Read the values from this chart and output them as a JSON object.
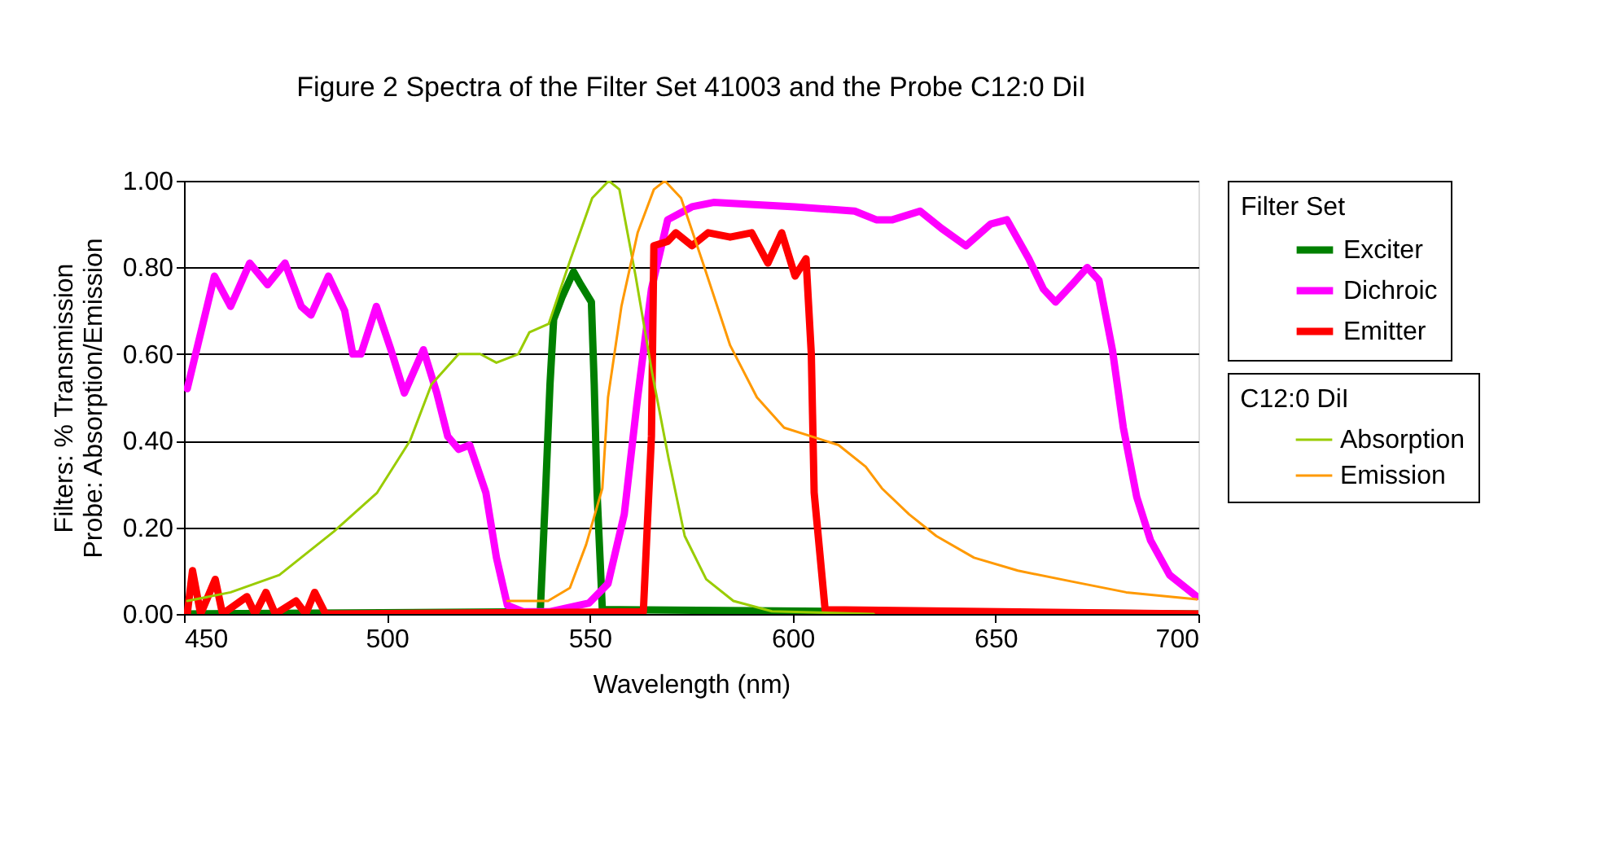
{
  "chart_data": {
    "type": "line",
    "title": "Figure 2  Spectra of the Filter Set 41003 and the Probe C12:0 DiI",
    "xlabel": "Wavelength (nm)",
    "ylabel": "Filters: % Transmission\nProbe: Absorption/Emission",
    "legend_title": [
      "Filter Set",
      "C12:0 DiI"
    ],
    "xlim": [
      450,
      700
    ],
    "xticks": [
      450,
      500,
      550,
      600,
      650,
      700
    ],
    "ylim": [
      0,
      1
    ],
    "yticks": [
      {
        "value": 0,
        "label": "0.00"
      },
      {
        "value": 0.2,
        "label": "0.20"
      },
      {
        "value": 0.4,
        "label": "0.40"
      },
      {
        "value": 0.6,
        "label": "0.60"
      },
      {
        "value": 0.8,
        "label": "0.80"
      },
      {
        "value": 1,
        "label": "1.00"
      }
    ],
    "grid": "y",
    "legend": "right",
    "marker": "none",
    "line_style": "solid",
    "series": [
      {
        "name": "Exciter",
        "color": "#008000",
        "x": [
          450,
          537.8,
          539.1,
          540.2,
          541.1,
          543.1,
          546,
          547.8,
          550.4,
          551.1,
          551.8,
          553.1,
          700
        ],
        "values": [
          0,
          0.005,
          0.28,
          0.53,
          0.68,
          0.73,
          0.79,
          0.76,
          0.72,
          0.53,
          0.28,
          0.01,
          0
        ]
      },
      {
        "name": "Dichroic",
        "color": "#ff00ff",
        "x": [
          450.8,
          457.5,
          461.5,
          466.2,
          470.6,
          474.9,
          478.9,
          481.3,
          485.6,
          489.6,
          491.6,
          493.6,
          497.4,
          501,
          504.3,
          509,
          512.3,
          515,
          517.7,
          520.4,
          524.4,
          527,
          529.7,
          533.7,
          540,
          549.8,
          554.5,
          558.5,
          561.8,
          565.2,
          569.2,
          575.2,
          580.5,
          600.6,
          615.3,
          620.6,
          624.6,
          631.4,
          636.7,
          642.7,
          648.8,
          652.8,
          658.2,
          661.8,
          664.8,
          668.8,
          672.6,
          675.5,
          678.8,
          681.5,
          684.8,
          688.2,
          692.9,
          699.6
        ],
        "values": [
          0.52,
          0.78,
          0.71,
          0.81,
          0.76,
          0.81,
          0.71,
          0.69,
          0.78,
          0.7,
          0.6,
          0.6,
          0.71,
          0.61,
          0.51,
          0.61,
          0.51,
          0.41,
          0.38,
          0.39,
          0.28,
          0.13,
          0.02,
          0.005,
          0.005,
          0.025,
          0.07,
          0.23,
          0.5,
          0.75,
          0.91,
          0.94,
          0.95,
          0.94,
          0.93,
          0.91,
          0.91,
          0.93,
          0.89,
          0.85,
          0.9,
          0.91,
          0.82,
          0.75,
          0.72,
          0.76,
          0.8,
          0.77,
          0.61,
          0.43,
          0.27,
          0.17,
          0.09,
          0.04
        ]
      },
      {
        "name": "Emitter",
        "color": "#ff0000",
        "x": [
          450.8,
          452.1,
          454.1,
          457.7,
          459.5,
          465.5,
          467.5,
          470.2,
          472.5,
          477.6,
          480,
          482.2,
          484.9,
          563.2,
          565.2,
          565.8,
          569.2,
          571.2,
          575.2,
          579.2,
          584.6,
          589.9,
          593.9,
          597.3,
          600.6,
          603.3,
          604.6,
          605.3,
          608,
          700
        ],
        "values": [
          0,
          0.1,
          0,
          0.08,
          0,
          0.04,
          0,
          0.05,
          0,
          0.03,
          0,
          0.05,
          0,
          0.005,
          0.41,
          0.85,
          0.86,
          0.88,
          0.85,
          0.88,
          0.87,
          0.88,
          0.81,
          0.88,
          0.78,
          0.82,
          0.6,
          0.28,
          0.01,
          0
        ]
      },
      {
        "name": "Absorption",
        "color": "#99cc00",
        "x": [
          450.8,
          461.5,
          473.5,
          486.9,
          497.6,
          505.7,
          511,
          517.7,
          523,
          527,
          532.4,
          535.1,
          539.9,
          545.3,
          550.6,
          554.7,
          557.3,
          561.3,
          565.3,
          569.4,
          573.4,
          578.7,
          585.4,
          594.9,
          620
        ],
        "values": [
          0.03,
          0.05,
          0.09,
          0.19,
          0.28,
          0.4,
          0.53,
          0.6,
          0.6,
          0.58,
          0.6,
          0.65,
          0.67,
          0.82,
          0.96,
          1.0,
          0.98,
          0.78,
          0.56,
          0.36,
          0.18,
          0.08,
          0.03,
          0.006,
          0
        ]
      },
      {
        "name": "Emission",
        "color": "#ff9900",
        "x": [
          529.7,
          539.7,
          545.1,
          549.1,
          553.1,
          554.5,
          557.8,
          561.8,
          565.8,
          568.5,
          572.5,
          577.9,
          584.6,
          591.2,
          597.9,
          604.6,
          611.3,
          618,
          622,
          628.7,
          635.4,
          644.7,
          655.5,
          668.8,
          682.2,
          699.6
        ],
        "values": [
          0.03,
          0.03,
          0.06,
          0.16,
          0.29,
          0.5,
          0.71,
          0.88,
          0.98,
          1.0,
          0.96,
          0.81,
          0.62,
          0.5,
          0.43,
          0.41,
          0.39,
          0.34,
          0.29,
          0.23,
          0.18,
          0.13,
          0.1,
          0.075,
          0.05,
          0.034
        ]
      }
    ]
  }
}
